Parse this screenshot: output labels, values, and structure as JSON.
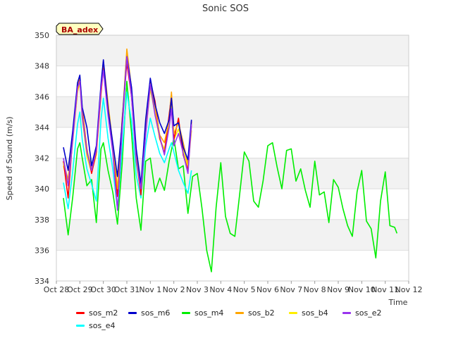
{
  "chart_data": {
    "type": "line",
    "title": "Sonic SOS",
    "badge": "BA_adex",
    "xlabel": "Time",
    "ylabel": "Speed of Sound (m/s)",
    "ylim": [
      334,
      350
    ],
    "yticks": [
      334,
      336,
      338,
      340,
      342,
      344,
      346,
      348,
      350
    ],
    "xlim": [
      0,
      15
    ],
    "xticks": [
      {
        "t": 0,
        "label": "Oct 28"
      },
      {
        "t": 1,
        "label": "Oct 29"
      },
      {
        "t": 2,
        "label": "Oct 30"
      },
      {
        "t": 3,
        "label": "Oct 31"
      },
      {
        "t": 4,
        "label": "Nov 1"
      },
      {
        "t": 5,
        "label": "Nov 2"
      },
      {
        "t": 6,
        "label": "Nov 3"
      },
      {
        "t": 7,
        "label": "Nov 4"
      },
      {
        "t": 8,
        "label": "Nov 5"
      },
      {
        "t": 9,
        "label": "Nov 6"
      },
      {
        "t": 10,
        "label": "Nov 7"
      },
      {
        "t": 11,
        "label": "Nov 8"
      },
      {
        "t": 12,
        "label": "Nov 9"
      },
      {
        "t": 13,
        "label": "Nov 10"
      },
      {
        "t": 14,
        "label": "Nov 11"
      },
      {
        "t": 15,
        "label": "Nov 12"
      }
    ],
    "series": [
      {
        "name": "sos_m2",
        "color": "#ff0000",
        "x": [
          0.3,
          0.5,
          0.7,
          0.9,
          1.0,
          1.1,
          1.3,
          1.5,
          1.7,
          1.9,
          2.0,
          2.2,
          2.4,
          2.6,
          2.8,
          3.0,
          3.2,
          3.4,
          3.6,
          3.8,
          4.0,
          4.2,
          4.4,
          4.6,
          4.8,
          4.9,
          5.0,
          5.2,
          5.4,
          5.6,
          5.75
        ],
        "y": [
          341.8,
          339.4,
          343.5,
          346.5,
          347.2,
          345.2,
          342.6,
          341.0,
          342.4,
          346.2,
          347.9,
          345.4,
          342.8,
          339.5,
          344.5,
          348.2,
          346.0,
          342.1,
          339.6,
          344.0,
          347.0,
          345.7,
          343.3,
          342.3,
          344.8,
          346.1,
          343.2,
          344.6,
          342.2,
          341.2,
          344.4
        ]
      },
      {
        "name": "sos_m6",
        "color": "#0000cc",
        "x": [
          0.3,
          0.5,
          0.7,
          0.9,
          1.0,
          1.1,
          1.3,
          1.5,
          1.7,
          1.9,
          2.0,
          2.2,
          2.4,
          2.6,
          2.8,
          3.0,
          3.2,
          3.4,
          3.6,
          3.8,
          4.0,
          4.2,
          4.4,
          4.6,
          4.8,
          4.9,
          5.0,
          5.2,
          5.4,
          5.6,
          5.75
        ],
        "y": [
          342.7,
          341.2,
          343.8,
          346.9,
          347.4,
          345.3,
          344.0,
          341.5,
          342.8,
          346.8,
          348.4,
          345.2,
          343.0,
          340.8,
          344.2,
          348.6,
          346.6,
          342.6,
          340.3,
          344.5,
          347.2,
          345.5,
          344.3,
          343.6,
          344.5,
          345.9,
          344.1,
          344.3,
          342.7,
          341.9,
          344.5
        ]
      },
      {
        "name": "sos_m4",
        "color": "#00ee00",
        "x": [
          0.3,
          0.5,
          0.7,
          0.9,
          1.0,
          1.1,
          1.3,
          1.5,
          1.7,
          1.9,
          2.0,
          2.2,
          2.4,
          2.6,
          2.8,
          3.0,
          3.2,
          3.4,
          3.6,
          3.8,
          4.0,
          4.2,
          4.4,
          4.6,
          4.8,
          5.0,
          5.2,
          5.4,
          5.6,
          5.8,
          6.0,
          6.2,
          6.4,
          6.6,
          6.8,
          7.0,
          7.2,
          7.4,
          7.6,
          7.8,
          8.0,
          8.2,
          8.4,
          8.6,
          8.8,
          9.0,
          9.2,
          9.4,
          9.6,
          9.8,
          10.0,
          10.2,
          10.4,
          10.6,
          10.8,
          11.0,
          11.2,
          11.4,
          11.6,
          11.8,
          12.0,
          12.2,
          12.4,
          12.6,
          12.8,
          13.0,
          13.2,
          13.4,
          13.6,
          13.8,
          14.0,
          14.2,
          14.4,
          14.5
        ],
        "y": [
          339.4,
          337.0,
          339.5,
          342.6,
          343.0,
          342.0,
          340.2,
          340.6,
          337.8,
          342.6,
          343.0,
          341.2,
          339.8,
          337.7,
          341.6,
          347.0,
          343.6,
          339.4,
          337.3,
          341.8,
          342.0,
          339.8,
          340.7,
          339.9,
          341.8,
          343.3,
          341.3,
          341.5,
          338.4,
          340.8,
          341.0,
          338.7,
          336.0,
          334.6,
          338.8,
          341.7,
          338.2,
          337.1,
          336.9,
          339.6,
          342.4,
          341.8,
          339.2,
          338.8,
          340.5,
          342.8,
          343.0,
          341.4,
          340.0,
          342.5,
          342.6,
          340.5,
          341.3,
          339.9,
          338.8,
          341.8,
          339.6,
          339.8,
          337.8,
          340.6,
          340.1,
          338.7,
          337.6,
          336.9,
          339.8,
          341.2,
          337.9,
          337.4,
          335.5,
          339.2,
          341.1,
          337.6,
          337.5,
          337.1
        ]
      },
      {
        "name": "sos_b2",
        "color": "#ffa500",
        "x": [
          0.3,
          0.5,
          0.7,
          0.9,
          1.0,
          1.1,
          1.3,
          1.5,
          1.7,
          1.9,
          2.0,
          2.2,
          2.4,
          2.6,
          2.8,
          3.0,
          3.2,
          3.4,
          3.6,
          3.8,
          4.0,
          4.2,
          4.4,
          4.6,
          4.8,
          4.9,
          5.0,
          5.2,
          5.4,
          5.6,
          5.75
        ],
        "y": [
          341.7,
          340.6,
          343.4,
          346.8,
          347.3,
          345.0,
          342.5,
          341.4,
          342.6,
          346.6,
          348.3,
          345.6,
          342.9,
          340.0,
          344.3,
          349.1,
          346.5,
          342.0,
          340.1,
          344.1,
          346.9,
          345.3,
          343.5,
          343.0,
          344.5,
          346.3,
          343.6,
          344.3,
          343.0,
          341.6,
          344.1
        ]
      },
      {
        "name": "sos_b4",
        "color": "#ffee00",
        "x": [
          0.3,
          0.5,
          0.7,
          0.9,
          1.0,
          1.1,
          1.3,
          1.5,
          1.7,
          1.9,
          2.0,
          2.2,
          2.4,
          2.6,
          2.8,
          3.0,
          3.2,
          3.4,
          3.6,
          3.8,
          4.0,
          4.2,
          4.4,
          4.6,
          4.8,
          4.9,
          5.0,
          5.2,
          5.4,
          5.6,
          5.75
        ],
        "y": [
          341.5,
          340.3,
          343.1,
          346.3,
          346.9,
          344.6,
          342.1,
          341.1,
          342.2,
          346.2,
          347.9,
          345.2,
          342.5,
          339.8,
          343.9,
          348.7,
          346.1,
          341.7,
          339.8,
          343.7,
          346.5,
          344.9,
          343.2,
          342.6,
          344.1,
          345.8,
          343.2,
          343.9,
          342.6,
          341.3,
          343.8
        ]
      },
      {
        "name": "sos_e2",
        "color": "#9933ee",
        "x": [
          0.3,
          0.5,
          0.7,
          0.9,
          1.0,
          1.1,
          1.3,
          1.5,
          1.7,
          1.9,
          2.0,
          2.2,
          2.4,
          2.6,
          2.8,
          3.0,
          3.2,
          3.4,
          3.6,
          3.8,
          4.0,
          4.2,
          4.4,
          4.6,
          4.8,
          4.9,
          5.0,
          5.2,
          5.4,
          5.6,
          5.75
        ],
        "y": [
          342.0,
          340.2,
          343.2,
          346.6,
          347.0,
          344.7,
          342.4,
          341.2,
          342.5,
          346.5,
          347.7,
          344.8,
          342.4,
          338.6,
          343.8,
          348.6,
          346.0,
          341.8,
          340.0,
          343.5,
          346.8,
          344.8,
          343.4,
          342.2,
          344.0,
          345.2,
          342.8,
          343.6,
          342.3,
          341.0,
          344.2
        ]
      },
      {
        "name": "sos_e4",
        "color": "#00ffff",
        "x": [
          0.3,
          0.5,
          0.7,
          0.9,
          1.0,
          1.1,
          1.3,
          1.5,
          1.7,
          1.9,
          2.0,
          2.2,
          2.4,
          2.6,
          2.8,
          3.0,
          3.2,
          3.4,
          3.6,
          3.8,
          4.0,
          4.2,
          4.4,
          4.6,
          4.8,
          4.9,
          5.0,
          5.2,
          5.4,
          5.6,
          5.75
        ],
        "y": [
          340.4,
          338.7,
          341.2,
          344.2,
          345.0,
          343.2,
          341.3,
          340.3,
          339.2,
          344.5,
          345.9,
          343.3,
          341.3,
          338.7,
          342.6,
          346.3,
          344.4,
          340.9,
          339.4,
          342.8,
          344.6,
          343.4,
          342.3,
          341.7,
          342.6,
          343.0,
          342.4,
          341.2,
          340.4,
          339.7,
          341.2
        ]
      }
    ]
  }
}
